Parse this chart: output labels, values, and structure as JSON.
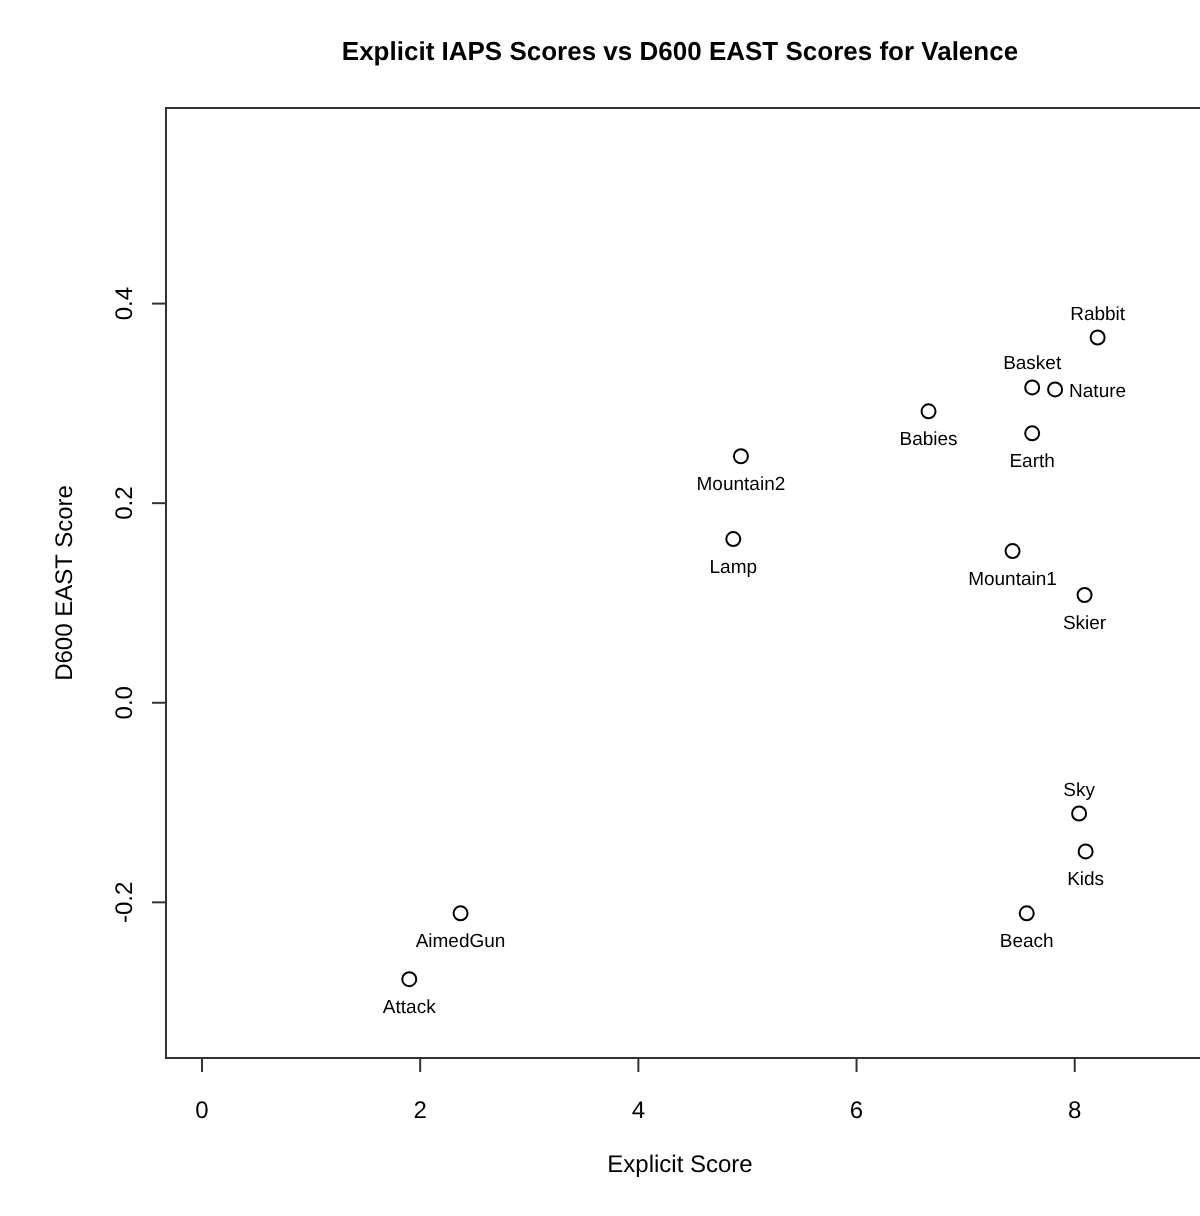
{
  "chart_data": {
    "type": "scatter",
    "title": "Explicit IAPS Scores vs D600 EAST Scores for Valence",
    "xlabel": "Explicit Score",
    "ylabel": "D600 EAST Score",
    "x": [
      8.21,
      7.61,
      7.82,
      6.66,
      7.61,
      4.94,
      4.87,
      7.43,
      8.09,
      8.04,
      8.1,
      7.56,
      2.37,
      1.9
    ],
    "series": [
      {
        "color": "#000000",
        "values": [
          0.366,
          0.316,
          0.314,
          0.292,
          0.27,
          0.247,
          0.164,
          0.152,
          0.108,
          -0.111,
          -0.149,
          -0.211,
          -0.211,
          -0.277
        ]
      }
    ],
    "xlim": [
      -0.33,
      9.13
    ],
    "ylim": [
      -0.356,
      0.596
    ],
    "xticks": [
      0,
      2,
      4,
      6,
      8
    ],
    "yticks": [
      {
        "value": -0.2,
        "label": "-0.2"
      },
      {
        "value": 0,
        "label": "0.0"
      },
      {
        "value": 0.2,
        "label": "0.2"
      },
      {
        "value": 0.4,
        "label": "0.4"
      }
    ],
    "marker": "circle",
    "grid": false,
    "annotations": [
      {
        "text": "Rabbit",
        "x": 8.21,
        "y": 0.366
      },
      {
        "text": "Basket",
        "x": 7.61,
        "y": 0.316
      },
      {
        "text": "Nature",
        "x": 7.82,
        "y": 0.314
      },
      {
        "text": "Babies",
        "x": 6.66,
        "y": 0.292
      },
      {
        "text": "Earth",
        "x": 7.61,
        "y": 0.27
      },
      {
        "text": "Mountain2",
        "x": 4.94,
        "y": 0.247
      },
      {
        "text": "Lamp",
        "x": 4.87,
        "y": 0.164
      },
      {
        "text": "Mountain1",
        "x": 7.43,
        "y": 0.152
      },
      {
        "text": "Skier",
        "x": 8.09,
        "y": 0.108
      },
      {
        "text": "Sky",
        "x": 8.04,
        "y": -0.111
      },
      {
        "text": "Kids",
        "x": 8.1,
        "y": -0.149
      },
      {
        "text": "Beach",
        "x": 7.56,
        "y": -0.211
      },
      {
        "text": "AimedGun",
        "x": 2.37,
        "y": -0.211
      },
      {
        "text": "Attack",
        "x": 1.9,
        "y": -0.277
      }
    ]
  }
}
